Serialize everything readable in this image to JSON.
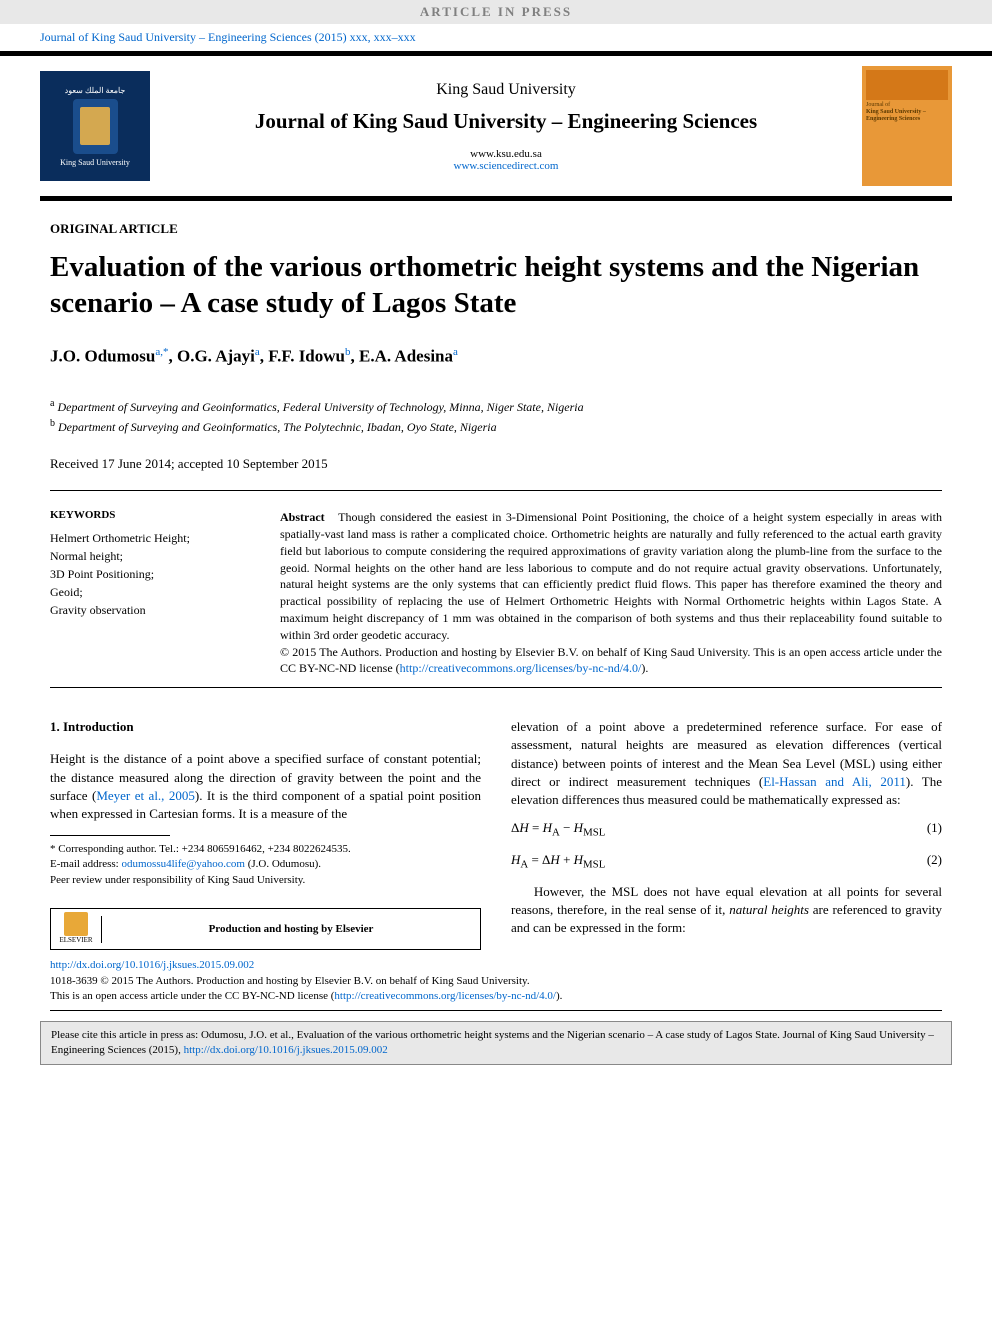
{
  "banner": "ARTICLE IN PRESS",
  "journal_ref": "Journal of King Saud University – Engineering Sciences (2015) xxx, xxx–xxx",
  "ksu_logo": {
    "arabic": "جامعة الملك سعود",
    "english": "King Saud University"
  },
  "header": {
    "university": "King Saud University",
    "journal": "Journal of King Saud University – Engineering Sciences",
    "url1": "www.ksu.edu.sa",
    "url2": "www.sciencedirect.com"
  },
  "cover": {
    "line1": "Journal of",
    "line2": "King Saud University –",
    "line3": "Engineering Sciences"
  },
  "article_type": "ORIGINAL ARTICLE",
  "title": "Evaluation of the various orthometric height systems and the Nigerian scenario – A case study of Lagos State",
  "authors": [
    {
      "name": "J.O. Odumosu",
      "sup": "a,*"
    },
    {
      "name": "O.G. Ajayi",
      "sup": "a"
    },
    {
      "name": "F.F. Idowu",
      "sup": "b"
    },
    {
      "name": "E.A. Adesina",
      "sup": "a"
    }
  ],
  "affiliations": [
    {
      "sup": "a",
      "text": "Department of Surveying and Geoinformatics, Federal University of Technology, Minna, Niger State, Nigeria"
    },
    {
      "sup": "b",
      "text": "Department of Surveying and Geoinformatics, The Polytechnic, Ibadan, Oyo State, Nigeria"
    }
  ],
  "dates": "Received 17 June 2014; accepted 10 September 2015",
  "keywords": {
    "title": "KEYWORDS",
    "items": [
      "Helmert Orthometric Height;",
      "Normal height;",
      "3D Point Positioning;",
      "Geoid;",
      "Gravity observation"
    ]
  },
  "abstract": {
    "label": "Abstract",
    "text": "Though considered the easiest in 3-Dimensional Point Positioning, the choice of a height system especially in areas with spatially-vast land mass is rather a complicated choice. Orthometric heights are naturally and fully referenced to the actual earth gravity field but laborious to compute considering the required approximations of gravity variation along the plumb-line from the surface to the geoid. Normal heights on the other hand are less laborious to compute and do not require actual gravity observations. Unfortunately, natural height systems are the only systems that can efficiently predict fluid flows. This paper has therefore examined the theory and practical possibility of replacing the use of Helmert Orthometric Heights with Normal Orthometric heights within Lagos State. A maximum height discrepancy of 1 mm was obtained in the comparison of both systems and thus their replaceability found suitable to within 3rd order geodetic accuracy.",
    "copyright": "© 2015 The Authors. Production and hosting by Elsevier B.V. on behalf of King Saud University. This is an open access article under the CC BY-NC-ND license (",
    "license_url": "http://creativecommons.org/licenses/by-nc-nd/4.0/",
    "copyright_end": ")."
  },
  "intro": {
    "heading": "1. Introduction",
    "para_left": "Height is the distance of a point above a specified surface of constant potential; the distance measured along the direction of gravity between the point and the surface (",
    "ref_left": "Meyer et al., 2005",
    "para_left_2": "). It is the third component of a spatial point position when expressed in Cartesian forms. It is a measure of the",
    "para_right_1": "elevation of a point above a predetermined reference surface. For ease of assessment, natural heights are measured as elevation differences (vertical distance) between points of interest and the Mean Sea Level (MSL) using either direct or indirect measurement techniques (",
    "ref_right": "El-Hassan and Ali, 2011",
    "para_right_2": "). The elevation differences thus measured could be mathematically expressed as:",
    "eq1": "ΔH = H_A − H_MSL",
    "eq1_num": "(1)",
    "eq2": "H_A = ΔH + H_MSL",
    "eq2_num": "(2)",
    "para_right_3": "However, the MSL does not have equal elevation at all points for several reasons, therefore, in the real sense of it, ",
    "italic": "natural heights",
    "para_right_4": " are referenced to gravity and can be expressed in the form:"
  },
  "footnote": {
    "corresponding": "* Corresponding author. Tel.: +234 8065916462, +234 8022624535.",
    "email_label": "E-mail address: ",
    "email": "odumossu4life@yahoo.com",
    "email_author": " (J.O. Odumosu).",
    "peer": "Peer review under responsibility of King Saud University."
  },
  "elsevier_label": "ELSEVIER",
  "hosting": "Production and hosting by Elsevier",
  "footer": {
    "doi": "http://dx.doi.org/10.1016/j.jksues.2015.09.002",
    "issn_line": "1018-3639 © 2015 The Authors. Production and hosting by Elsevier B.V. on behalf of King Saud University.",
    "license_line": "This is an open access article under the CC BY-NC-ND license (",
    "license_url": "http://creativecommons.org/licenses/by-nc-nd/4.0/",
    "license_end": ")."
  },
  "cite": {
    "text": "Please cite this article in press as: Odumosu, J.O. et al., Evaluation of the various orthometric height systems and the Nigerian scenario – A case study of Lagos State. Journal of King Saud University – Engineering Sciences (2015), ",
    "url": "http://dx.doi.org/10.1016/j.jksues.2015.09.002"
  }
}
